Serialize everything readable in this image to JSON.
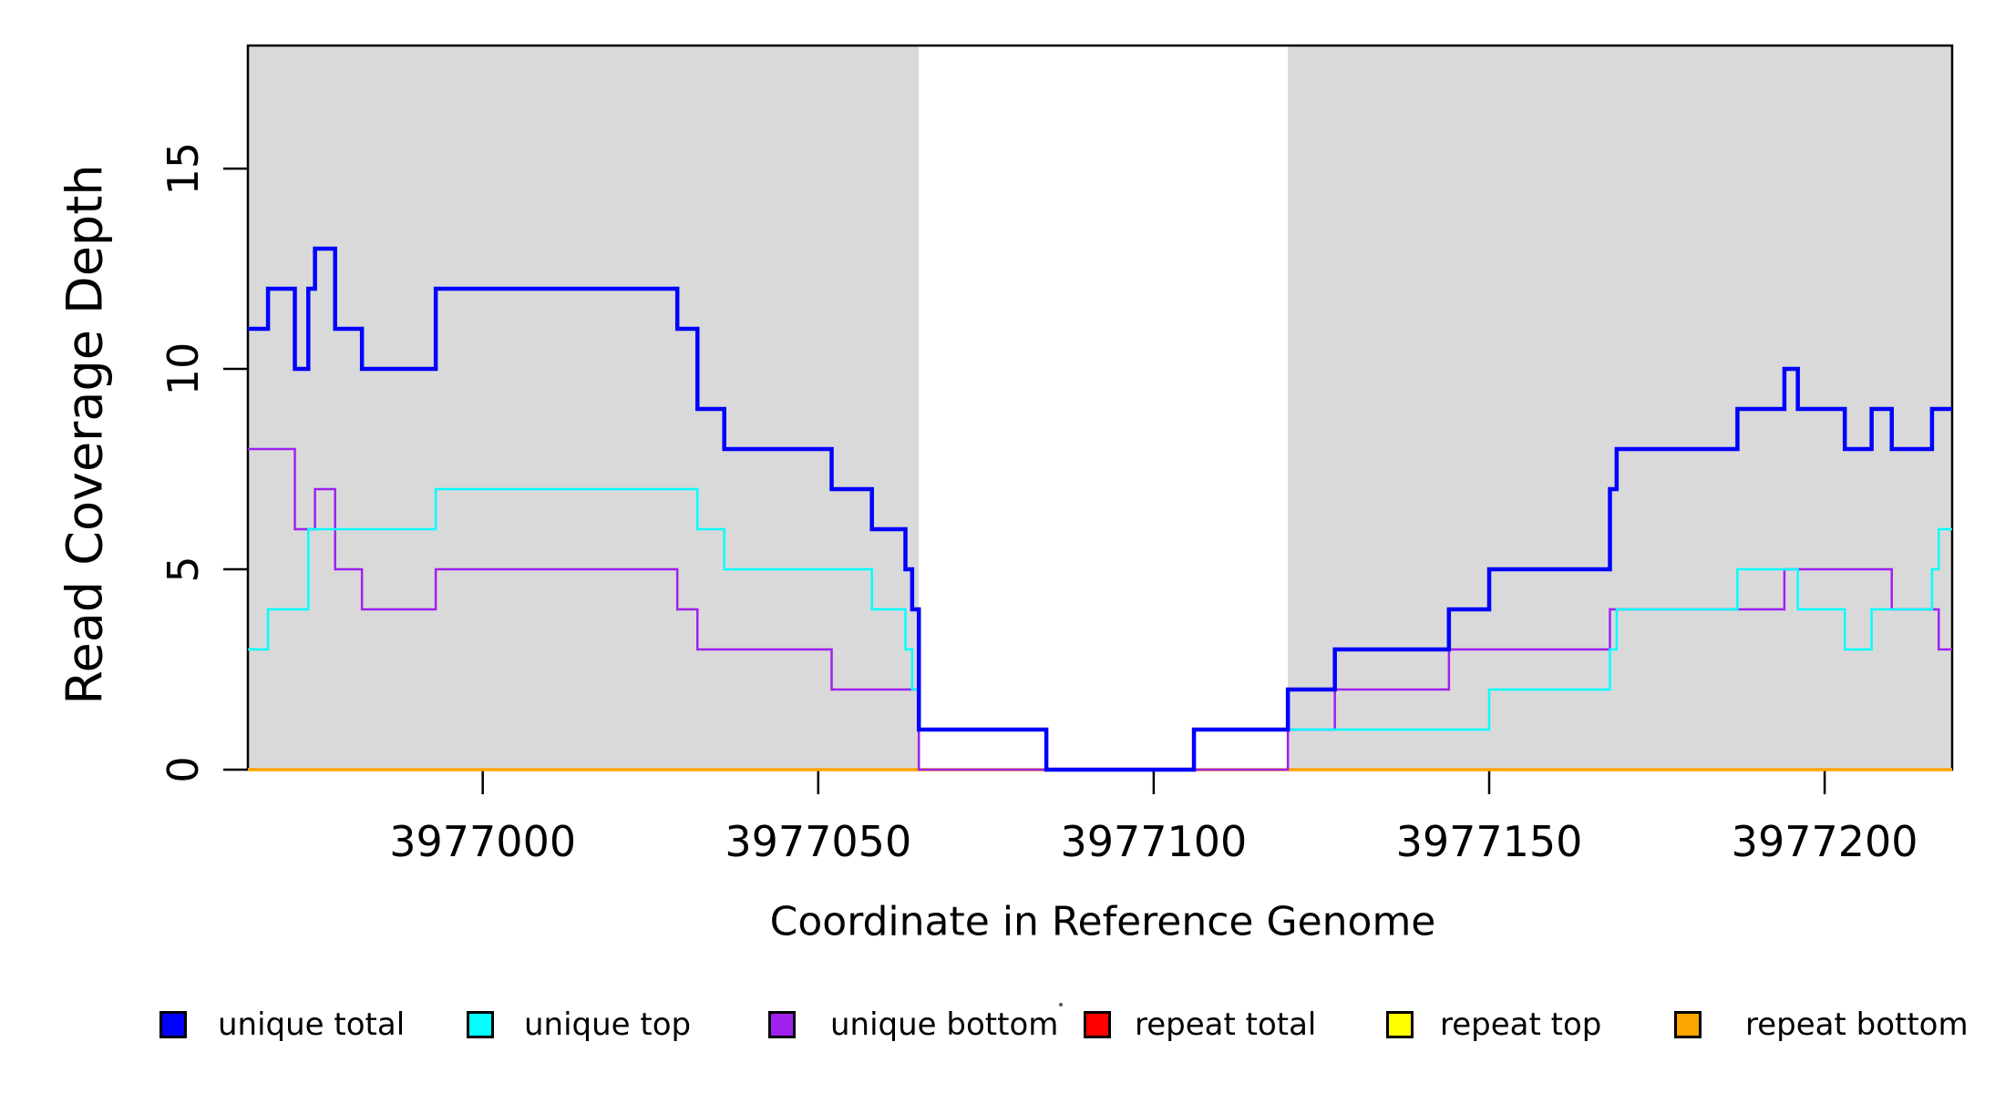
{
  "chart_data": {
    "type": "line",
    "subtype": "step-coverage",
    "x_axis": {
      "label": "Coordinate in Reference Genome",
      "ticks": [
        3977000,
        3977050,
        3977100,
        3977150,
        3977200
      ],
      "range": [
        3976965,
        3977219
      ]
    },
    "y_axis": {
      "label": "Read Coverage Depth",
      "ticks": [
        0,
        5,
        10,
        15
      ],
      "range": [
        0,
        18.07
      ]
    },
    "grid": "off",
    "region_color": "#D9D9D9",
    "shaded_regions": [
      {
        "from": 3976965,
        "to": 3977065
      },
      {
        "from": 3977120,
        "to": 3977219
      }
    ],
    "gap_region": {
      "from": 3977065,
      "to": 3977120
    },
    "series": [
      {
        "name": "repeat-total",
        "label": "repeat total",
        "color": "#FF0000",
        "width": 2,
        "x": [
          3976965
        ],
        "v": [
          0
        ]
      },
      {
        "name": "repeat-top",
        "label": "repeat top",
        "color": "#FFFF00",
        "width": 2,
        "x": [
          3976965
        ],
        "v": [
          0
        ]
      },
      {
        "name": "repeat-bottom",
        "label": "repeat bottom",
        "color": "#FFA500",
        "width": 3.5,
        "x": [
          3976965
        ],
        "v": [
          0
        ]
      },
      {
        "name": "unique-bottom",
        "label": "unique bottom",
        "color": "#A020F0",
        "width": 2.5,
        "x": [
          3976965,
          3976972,
          3976975,
          3976978,
          3976982,
          3976993,
          3977029,
          3977032,
          3977052,
          3977065,
          3977120,
          3977127,
          3977144,
          3977168,
          3977194,
          3977210,
          3977217
        ],
        "v": [
          8,
          6,
          7,
          5,
          4,
          5,
          4,
          3,
          2,
          0,
          1,
          2,
          3,
          4,
          5,
          4,
          3
        ]
      },
      {
        "name": "unique-top",
        "label": "unique top",
        "color": "#00FFFF",
        "width": 2.5,
        "x": [
          3976965,
          3976968,
          3976974,
          3976993,
          3977032,
          3977036,
          3977058,
          3977063,
          3977064,
          3977065,
          3977084,
          3977106,
          3977150,
          3977168,
          3977169,
          3977187,
          3977196,
          3977203,
          3977207,
          3977216,
          3977217
        ],
        "v": [
          3,
          4,
          6,
          7,
          6,
          5,
          4,
          3,
          2,
          1,
          0,
          1,
          2,
          3,
          4,
          5,
          4,
          3,
          4,
          5,
          6
        ]
      },
      {
        "name": "unique-total",
        "label": "unique total",
        "color": "#0000FF",
        "width": 4.5,
        "x": [
          3976965,
          3976968,
          3976972,
          3976974,
          3976975,
          3976978,
          3976982,
          3976993,
          3977029,
          3977032,
          3977036,
          3977052,
          3977058,
          3977063,
          3977064,
          3977065,
          3977084,
          3977106,
          3977120,
          3977127,
          3977144,
          3977150,
          3977168,
          3977169,
          3977187,
          3977194,
          3977196,
          3977203,
          3977207,
          3977210,
          3977216
        ],
        "v": [
          11,
          12,
          10,
          12,
          13,
          11,
          10,
          12,
          11,
          9,
          8,
          7,
          6,
          5,
          4,
          1,
          0,
          1,
          2,
          3,
          4,
          5,
          7,
          8,
          9,
          10,
          9,
          8,
          9,
          8,
          9
        ]
      }
    ]
  },
  "legend": {
    "items": [
      {
        "label": "unique total",
        "color": "#0000FF"
      },
      {
        "label": "unique top",
        "color": "#00FFFF"
      },
      {
        "label": "unique bottom",
        "color": "#A020F0"
      },
      {
        "label": "repeat total",
        "color": "#FF0000"
      },
      {
        "label": "repeat top",
        "color": "#FFFF00"
      },
      {
        "label": "repeat bottom",
        "color": "#FFA500"
      }
    ]
  }
}
